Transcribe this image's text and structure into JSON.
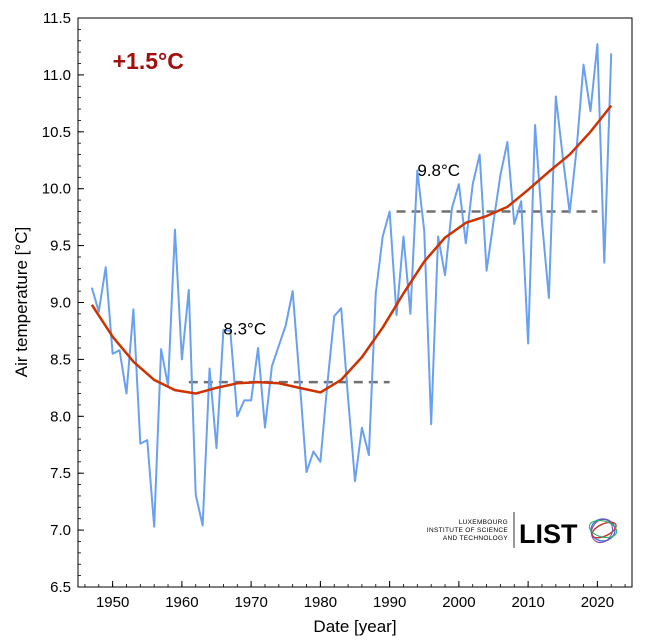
{
  "chart_data": {
    "type": "line",
    "xlabel": "Date [year]",
    "ylabel": "Air temperature [°C]",
    "xlim": [
      1945,
      2025
    ],
    "ylim": [
      6.5,
      11.5
    ],
    "x_ticks": [
      1950,
      1960,
      1970,
      1980,
      1990,
      2000,
      2010,
      2020
    ],
    "x_tick_labels": [
      "1950",
      "1960",
      "1970",
      "1980",
      "1990",
      "2000",
      "2010",
      "2020"
    ],
    "y_ticks": [
      6.5,
      7.0,
      7.5,
      8.0,
      8.5,
      9.0,
      9.5,
      10.0,
      10.5,
      11.0,
      11.5
    ],
    "y_tick_labels": [
      "6.5",
      "7.0",
      "7.5",
      "8.0",
      "8.5",
      "9.0",
      "9.5",
      "10.0",
      "10.5",
      "11.0",
      "11.5"
    ],
    "grid": false,
    "series": [
      {
        "type": "line",
        "color": "#6aa0f0",
        "x": [
          1947,
          1948,
          1949,
          1950,
          1951,
          1952,
          1953,
          1954,
          1955,
          1956,
          1957,
          1958,
          1959,
          1960,
          1961,
          1962,
          1963,
          1964,
          1965,
          1966,
          1967,
          1968,
          1969,
          1970,
          1971,
          1972,
          1973,
          1974,
          1975,
          1976,
          1977,
          1978,
          1979,
          1980,
          1981,
          1982,
          1983,
          1984,
          1985,
          1986,
          1987,
          1988,
          1989,
          1990,
          1991,
          1992,
          1993,
          1994,
          1995,
          1996,
          1997,
          1998,
          1999,
          2000,
          2001,
          2002,
          2003,
          2004,
          2005,
          2006,
          2007,
          2008,
          2009,
          2010,
          2011,
          2012,
          2013,
          2014,
          2015,
          2016,
          2017,
          2018,
          2019,
          2020,
          2021,
          2022
        ],
        "y": [
          9.13,
          8.92,
          9.31,
          8.55,
          8.58,
          8.2,
          8.94,
          7.76,
          7.79,
          7.03,
          8.59,
          8.27,
          9.64,
          8.5,
          9.11,
          7.31,
          7.04,
          8.42,
          7.72,
          8.76,
          8.75,
          8.0,
          8.14,
          8.14,
          8.6,
          7.9,
          8.44,
          8.62,
          8.8,
          9.1,
          8.32,
          7.51,
          7.69,
          7.6,
          8.28,
          8.88,
          8.95,
          8.16,
          7.43,
          7.9,
          7.66,
          9.08,
          9.58,
          9.8,
          8.89,
          9.58,
          8.9,
          10.16,
          9.63,
          7.93,
          9.58,
          9.24,
          9.83,
          10.04,
          9.52,
          10.04,
          10.3,
          9.28,
          9.71,
          10.12,
          10.41,
          9.69,
          9.89,
          8.64,
          10.56,
          9.71,
          9.04,
          10.81,
          10.28,
          9.79,
          10.35,
          11.09,
          10.68,
          11.27,
          9.35,
          11.19
        ]
      },
      {
        "type": "line",
        "color": "#cc3300",
        "x": [
          1947,
          1950,
          1953,
          1956,
          1959,
          1962,
          1965,
          1968,
          1971,
          1974,
          1977,
          1980,
          1983,
          1986,
          1989,
          1992,
          1995,
          1998,
          2001,
          2004,
          2007,
          2010,
          2013,
          2016,
          2019,
          2022
        ],
        "y": [
          8.98,
          8.7,
          8.48,
          8.32,
          8.23,
          8.2,
          8.25,
          8.29,
          8.3,
          8.29,
          8.25,
          8.21,
          8.32,
          8.52,
          8.78,
          9.08,
          9.36,
          9.57,
          9.7,
          9.76,
          9.84,
          9.99,
          10.15,
          10.3,
          10.5,
          10.73
        ]
      },
      {
        "type": "dashed",
        "color": "#707070",
        "x": [
          1961,
          1990
        ],
        "y": [
          8.3,
          8.3
        ]
      },
      {
        "type": "dashed",
        "color": "#707070",
        "x": [
          1991,
          2020
        ],
        "y": [
          9.8,
          9.8
        ]
      }
    ],
    "annotations": [
      {
        "text": "+1.5°C",
        "x": 1950,
        "y": 11.05,
        "color": "#a01010"
      },
      {
        "text": "8.3°C",
        "x": 1966,
        "y": 8.72,
        "color": "#000000"
      },
      {
        "text": "9.8°C",
        "x": 1994,
        "y": 10.11,
        "color": "#000000"
      }
    ]
  },
  "logo": {
    "line1": "LUXEMBOURG",
    "line2": "INSTITUTE OF SCIENCE",
    "line3": "AND TECHNOLOGY",
    "name": "LIST"
  }
}
